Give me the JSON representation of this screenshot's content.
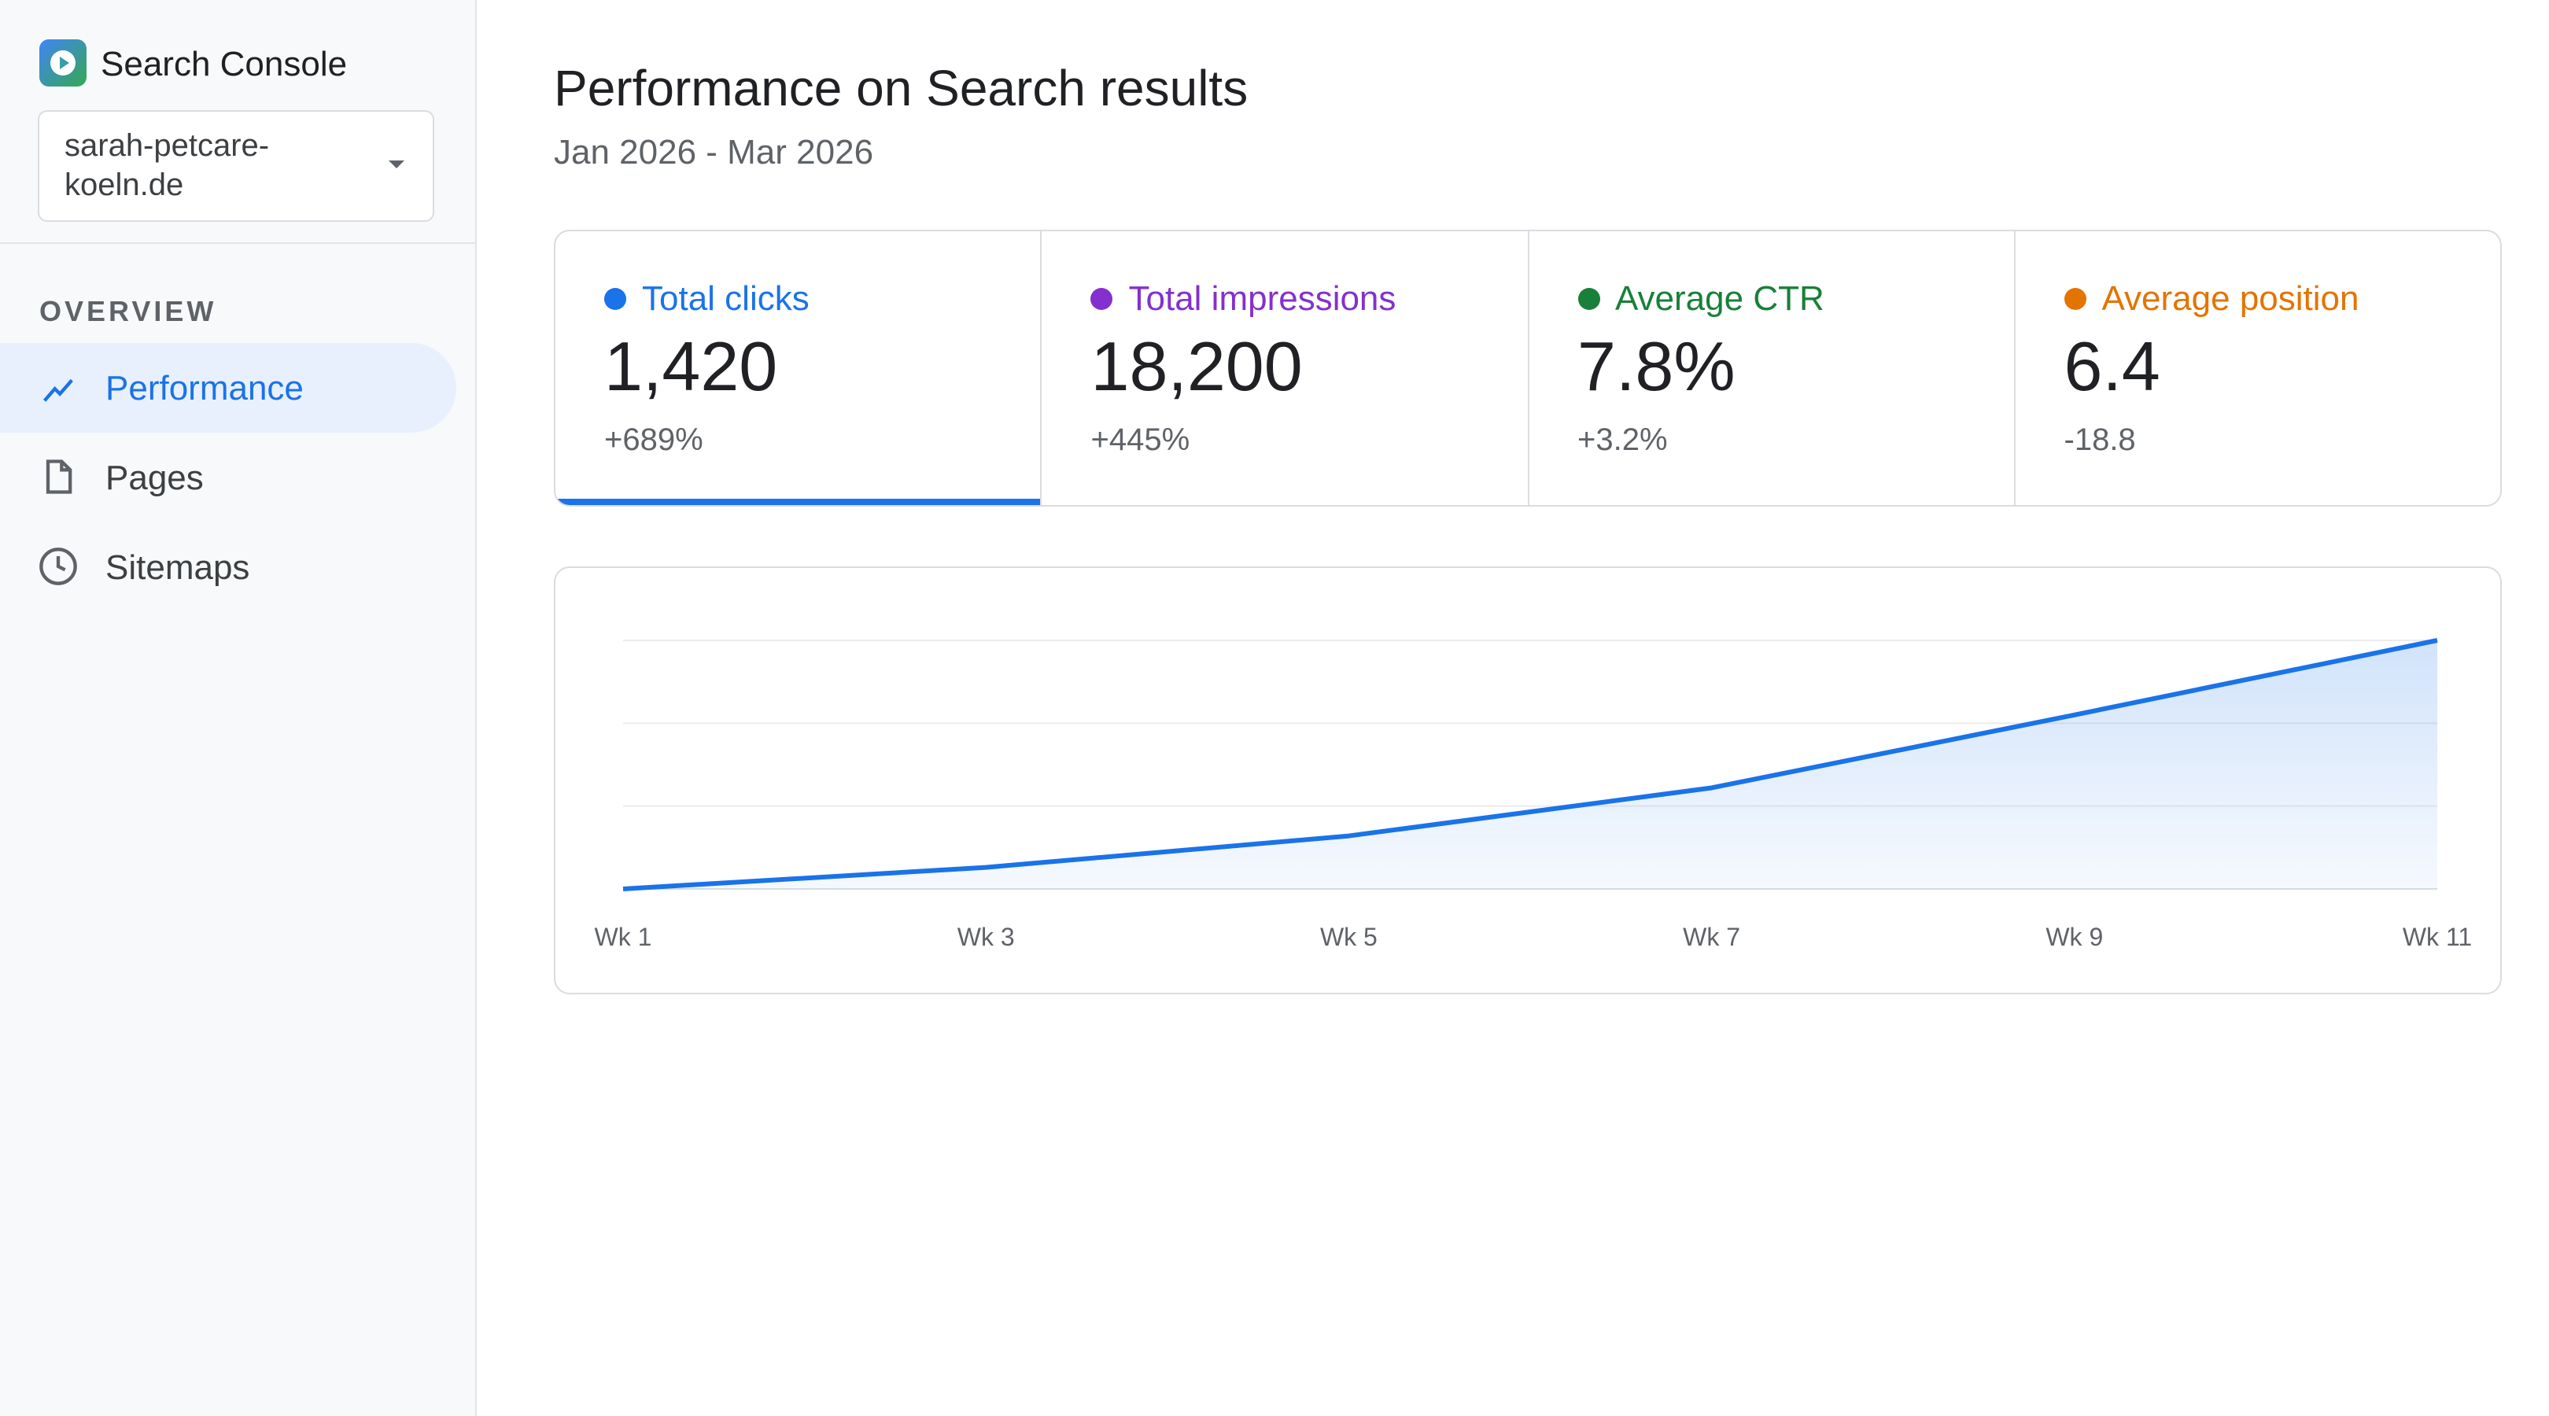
{
  "sidebar": {
    "app_name": "Search Console",
    "property": "sarah-petcare-koeln.de",
    "section": "OVERVIEW",
    "nav": [
      "Performance",
      "Pages",
      "Sitemaps"
    ],
    "active": 0
  },
  "header": {
    "title": "Performance on Search results",
    "date_range": "Jan 2026 - Mar 2026"
  },
  "metrics": [
    {
      "label": "Total clicks",
      "value": "1,420",
      "change": "+689%",
      "color": "#1a73e8"
    },
    {
      "label": "Total impressions",
      "value": "18,200",
      "change": "+445%",
      "color": "#8430ce"
    },
    {
      "label": "Average CTR",
      "value": "7.8%",
      "change": "+3.2%",
      "color": "#188038"
    },
    {
      "label": "Average position",
      "value": "6.4",
      "change": "-18.8",
      "color": "#e37400"
    }
  ],
  "chart_data": {
    "type": "line",
    "categories": [
      "Wk 1",
      "Wk 3",
      "Wk 5",
      "Wk 7",
      "Wk 9",
      "Wk 11"
    ],
    "values": [
      0,
      13,
      32,
      61,
      105,
      150
    ],
    "color": "#1a73e8",
    "ylim": [
      0,
      150
    ],
    "yticks": [
      0,
      50,
      100,
      150
    ],
    "grid": true
  }
}
